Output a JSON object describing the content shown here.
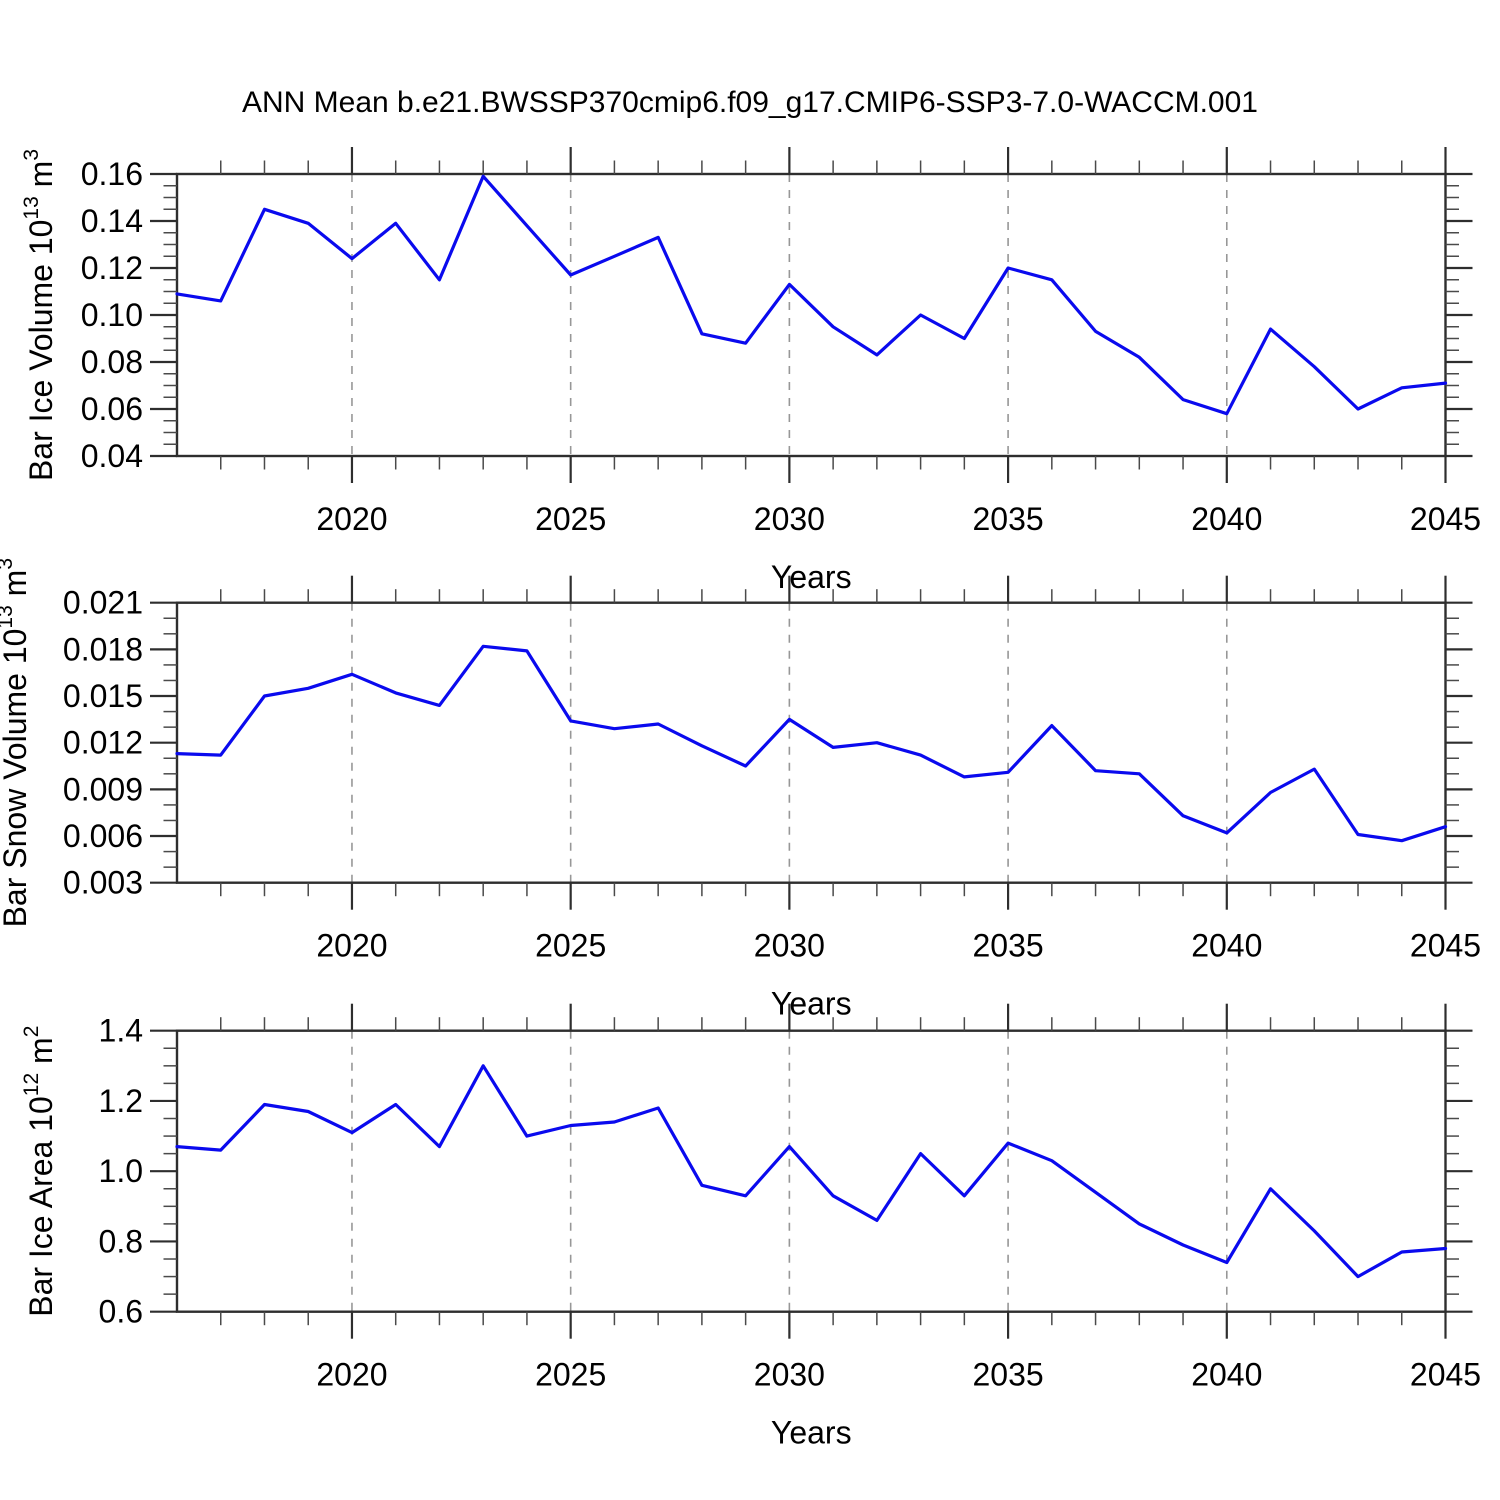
{
  "title": "ANN Mean b.e21.BWSSP370cmip6.f09_g17.CMIP6-SSP3-7.0-WACCM.001",
  "colors": {
    "line": "#0a0aee",
    "axis": "#2e2e2e",
    "minor_tick": "#4a4a4a",
    "grid": "#979797",
    "text": "#000000"
  },
  "chart_data": [
    {
      "type": "line",
      "name": "ice-volume",
      "ylabel": "Bar Ice Volume 10^13 m^3",
      "ylabel_parts": [
        {
          "t": "Bar Ice Volume 10"
        },
        {
          "t": "13",
          "sup": true
        },
        {
          "t": " m"
        },
        {
          "t": "3",
          "sup": true
        }
      ],
      "xlabel": "Years",
      "xlim": [
        2016,
        2045
      ],
      "ylim": [
        0.04,
        0.16
      ],
      "ytick_step": 0.02,
      "yminor_step": 0.005,
      "ytick_decimals": 2,
      "xtick_labeled": [
        2020,
        2025,
        2030,
        2035,
        2040,
        2045
      ],
      "grid_years": [
        2020,
        2025,
        2030,
        2035,
        2040
      ],
      "grid_style": "vertical-dashed",
      "legend": "none",
      "x": [
        2016,
        2017,
        2018,
        2019,
        2020,
        2021,
        2022,
        2023,
        2024,
        2025,
        2026,
        2027,
        2028,
        2029,
        2030,
        2031,
        2032,
        2033,
        2034,
        2035,
        2036,
        2037,
        2038,
        2039,
        2040,
        2041,
        2042,
        2043,
        2044,
        2045
      ],
      "values": [
        0.109,
        0.106,
        0.145,
        0.139,
        0.124,
        0.139,
        0.115,
        0.159,
        0.138,
        0.117,
        0.125,
        0.133,
        0.092,
        0.088,
        0.113,
        0.095,
        0.083,
        0.1,
        0.09,
        0.12,
        0.115,
        0.093,
        0.082,
        0.064,
        0.058,
        0.094,
        0.078,
        0.06,
        0.069,
        0.071
      ]
    },
    {
      "type": "line",
      "name": "snow-volume",
      "ylabel": "Bar Snow Volume 10^13 m^3",
      "ylabel_parts": [
        {
          "t": "Bar Snow Volume 10"
        },
        {
          "t": "13",
          "sup": true
        },
        {
          "t": " m"
        },
        {
          "t": "3",
          "sup": true
        }
      ],
      "xlabel": "Years",
      "xlim": [
        2016,
        2045
      ],
      "ylim": [
        0.003,
        0.021
      ],
      "ytick_step": 0.003,
      "yminor_step": 0.001,
      "ytick_decimals": 3,
      "xtick_labeled": [
        2020,
        2025,
        2030,
        2035,
        2040,
        2045
      ],
      "grid_years": [
        2020,
        2025,
        2030,
        2035,
        2040
      ],
      "grid_style": "vertical-dashed",
      "legend": "none",
      "x": [
        2016,
        2017,
        2018,
        2019,
        2020,
        2021,
        2022,
        2023,
        2024,
        2025,
        2026,
        2027,
        2028,
        2029,
        2030,
        2031,
        2032,
        2033,
        2034,
        2035,
        2036,
        2037,
        2038,
        2039,
        2040,
        2041,
        2042,
        2043,
        2044,
        2045
      ],
      "values": [
        0.0113,
        0.0112,
        0.015,
        0.0155,
        0.0164,
        0.0152,
        0.0144,
        0.0182,
        0.0179,
        0.0134,
        0.0129,
        0.0132,
        0.0118,
        0.0105,
        0.0135,
        0.0117,
        0.012,
        0.0112,
        0.0098,
        0.0101,
        0.0131,
        0.0102,
        0.01,
        0.0073,
        0.0062,
        0.0088,
        0.0103,
        0.0061,
        0.0057,
        0.0066
      ]
    },
    {
      "type": "line",
      "name": "ice-area",
      "ylabel": "Bar Ice Area 10^12 m^2",
      "ylabel_parts": [
        {
          "t": "Bar Ice Area 10"
        },
        {
          "t": "12",
          "sup": true
        },
        {
          "t": " m"
        },
        {
          "t": "2",
          "sup": true
        }
      ],
      "xlabel": "Years",
      "xlim": [
        2016,
        2045
      ],
      "ylim": [
        0.6,
        1.4
      ],
      "ytick_step": 0.2,
      "yminor_step": 0.05,
      "ytick_decimals": 1,
      "xtick_labeled": [
        2020,
        2025,
        2030,
        2035,
        2040,
        2045
      ],
      "grid_years": [
        2020,
        2025,
        2030,
        2035,
        2040
      ],
      "grid_style": "vertical-dashed",
      "legend": "none",
      "x": [
        2016,
        2017,
        2018,
        2019,
        2020,
        2021,
        2022,
        2023,
        2024,
        2025,
        2026,
        2027,
        2028,
        2029,
        2030,
        2031,
        2032,
        2033,
        2034,
        2035,
        2036,
        2037,
        2038,
        2039,
        2040,
        2041,
        2042,
        2043,
        2044,
        2045
      ],
      "values": [
        1.07,
        1.06,
        1.19,
        1.17,
        1.11,
        1.19,
        1.07,
        1.3,
        1.1,
        1.13,
        1.14,
        1.18,
        0.96,
        0.93,
        1.07,
        0.93,
        0.86,
        1.05,
        0.93,
        1.08,
        1.03,
        0.94,
        0.85,
        0.79,
        0.74,
        0.95,
        0.83,
        0.7,
        0.77,
        0.78
      ]
    }
  ]
}
